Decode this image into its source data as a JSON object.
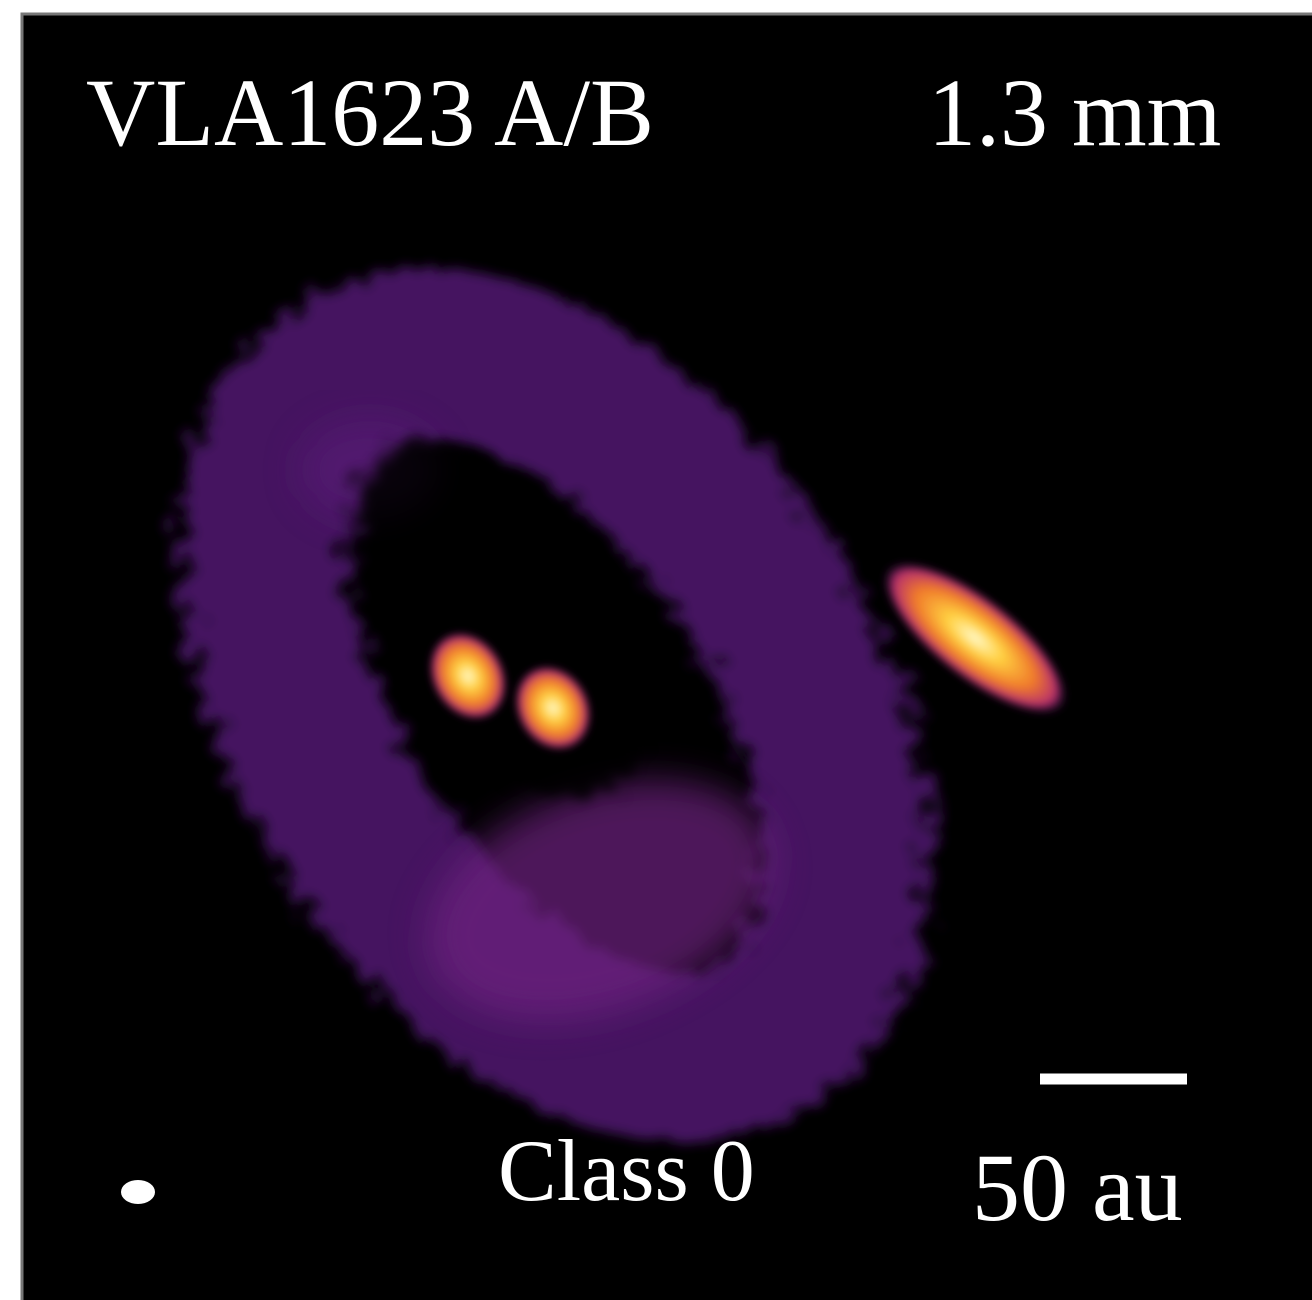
{
  "image": {
    "title": "VLA1623 A/B",
    "wavelength": "1.3 mm",
    "class_label": "Class 0",
    "scale_label": "50 au"
  }
}
